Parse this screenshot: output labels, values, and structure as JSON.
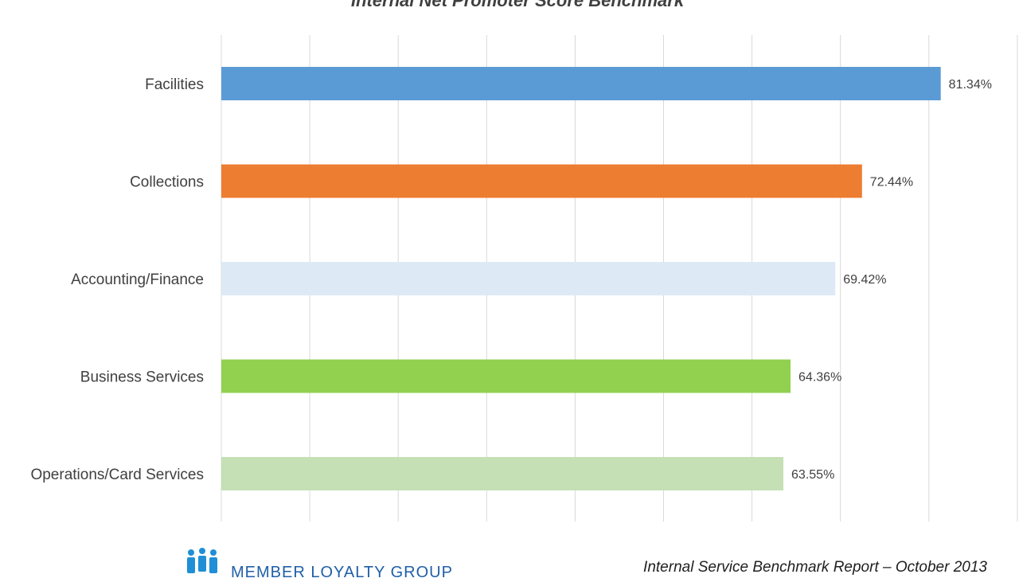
{
  "chart_data": {
    "type": "bar",
    "orientation": "horizontal",
    "title": "Internal Net Promoter Score Benchmark",
    "categories": [
      "Facilities",
      "Collections",
      "Accounting/Finance",
      "Business Services",
      "Operations/Card Services"
    ],
    "values": [
      81.34,
      72.44,
      69.42,
      64.36,
      63.55
    ],
    "data_labels": [
      "81.34%",
      "72.44%",
      "69.42%",
      "64.36%",
      "63.55%"
    ],
    "colors": [
      "#5b9bd5",
      "#ed7d31",
      "#ddeaf6",
      "#92d050",
      "#c5e0b4"
    ],
    "xlim": [
      0,
      90
    ],
    "x_gridlines": [
      0,
      10,
      20,
      30,
      40,
      50,
      60,
      70,
      80,
      90
    ],
    "grid": true,
    "gridline_color": "#d9d9d9",
    "xlabel": "",
    "ylabel": "",
    "legend": "none"
  },
  "footer": {
    "logo_text": "MEMBER LOYALTY GROUP",
    "logo_icon": "people-group-icon",
    "logo_color": "#1f8fd6",
    "report_label": "Internal Service Benchmark Report – October 2013"
  }
}
